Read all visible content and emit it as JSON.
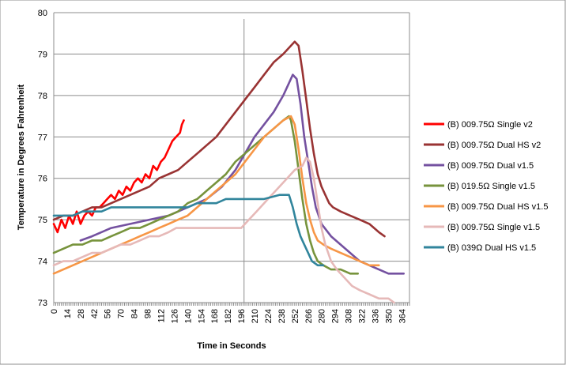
{
  "chart_data": {
    "type": "line",
    "title": "",
    "xlabel": "Time in Seconds",
    "ylabel": "Temperature in Degrees Fahrenheit",
    "xlim": [
      0,
      372
    ],
    "ylim": [
      73,
      80
    ],
    "yticks": [
      73,
      74,
      75,
      76,
      77,
      78,
      79,
      80
    ],
    "xticks": [
      0,
      14,
      28,
      42,
      56,
      70,
      84,
      98,
      112,
      126,
      140,
      154,
      168,
      182,
      196,
      210,
      224,
      238,
      252,
      266,
      280,
      294,
      308,
      322,
      336,
      350,
      364
    ],
    "vertical_marker_x": 199,
    "grid": "horizontal",
    "legend_position": "right",
    "series": [
      {
        "name": "(B) 009.75Ω Single v2",
        "color": "#ff0000",
        "points": [
          [
            0,
            74.9
          ],
          [
            4,
            74.7
          ],
          [
            8,
            75.0
          ],
          [
            12,
            74.8
          ],
          [
            16,
            75.1
          ],
          [
            20,
            74.9
          ],
          [
            24,
            75.2
          ],
          [
            28,
            74.9
          ],
          [
            32,
            75.1
          ],
          [
            36,
            75.2
          ],
          [
            40,
            75.1
          ],
          [
            44,
            75.3
          ],
          [
            48,
            75.3
          ],
          [
            52,
            75.4
          ],
          [
            56,
            75.5
          ],
          [
            60,
            75.6
          ],
          [
            64,
            75.5
          ],
          [
            68,
            75.7
          ],
          [
            72,
            75.6
          ],
          [
            76,
            75.8
          ],
          [
            80,
            75.7
          ],
          [
            84,
            75.9
          ],
          [
            88,
            76.0
          ],
          [
            92,
            75.9
          ],
          [
            96,
            76.1
          ],
          [
            100,
            76.0
          ],
          [
            104,
            76.3
          ],
          [
            108,
            76.2
          ],
          [
            112,
            76.4
          ],
          [
            116,
            76.5
          ],
          [
            120,
            76.7
          ],
          [
            124,
            76.9
          ],
          [
            128,
            77.0
          ],
          [
            132,
            77.1
          ],
          [
            134,
            77.3
          ],
          [
            136,
            77.4
          ]
        ]
      },
      {
        "name": "(B) 009.75Ω Dual HS v2",
        "color": "#993333",
        "points": [
          [
            0,
            75.0
          ],
          [
            10,
            75.1
          ],
          [
            20,
            75.1
          ],
          [
            30,
            75.2
          ],
          [
            40,
            75.3
          ],
          [
            50,
            75.3
          ],
          [
            60,
            75.4
          ],
          [
            70,
            75.5
          ],
          [
            80,
            75.6
          ],
          [
            90,
            75.7
          ],
          [
            100,
            75.8
          ],
          [
            110,
            76.0
          ],
          [
            120,
            76.1
          ],
          [
            130,
            76.2
          ],
          [
            140,
            76.4
          ],
          [
            150,
            76.6
          ],
          [
            160,
            76.8
          ],
          [
            170,
            77.0
          ],
          [
            180,
            77.3
          ],
          [
            190,
            77.6
          ],
          [
            200,
            77.9
          ],
          [
            210,
            78.2
          ],
          [
            220,
            78.5
          ],
          [
            230,
            78.8
          ],
          [
            240,
            79.0
          ],
          [
            248,
            79.2
          ],
          [
            252,
            79.3
          ],
          [
            256,
            79.2
          ],
          [
            260,
            78.6
          ],
          [
            264,
            77.9
          ],
          [
            268,
            77.2
          ],
          [
            272,
            76.6
          ],
          [
            276,
            76.1
          ],
          [
            280,
            75.8
          ],
          [
            284,
            75.6
          ],
          [
            288,
            75.4
          ],
          [
            292,
            75.3
          ],
          [
            300,
            75.2
          ],
          [
            310,
            75.1
          ],
          [
            320,
            75.0
          ],
          [
            330,
            74.9
          ],
          [
            340,
            74.7
          ],
          [
            346,
            74.6
          ]
        ]
      },
      {
        "name": "(B) 009.75Ω Dual v1.5",
        "color": "#7451a0",
        "points": [
          [
            28,
            74.5
          ],
          [
            40,
            74.6
          ],
          [
            60,
            74.8
          ],
          [
            80,
            74.9
          ],
          [
            100,
            75.0
          ],
          [
            120,
            75.1
          ],
          [
            140,
            75.3
          ],
          [
            160,
            75.5
          ],
          [
            176,
            75.8
          ],
          [
            190,
            76.2
          ],
          [
            200,
            76.6
          ],
          [
            210,
            77.0
          ],
          [
            220,
            77.3
          ],
          [
            230,
            77.6
          ],
          [
            240,
            78.0
          ],
          [
            246,
            78.3
          ],
          [
            250,
            78.5
          ],
          [
            254,
            78.4
          ],
          [
            258,
            77.8
          ],
          [
            262,
            77.0
          ],
          [
            266,
            76.4
          ],
          [
            270,
            75.8
          ],
          [
            274,
            75.3
          ],
          [
            280,
            74.9
          ],
          [
            290,
            74.6
          ],
          [
            300,
            74.4
          ],
          [
            310,
            74.2
          ],
          [
            320,
            74.0
          ],
          [
            330,
            73.9
          ],
          [
            340,
            73.8
          ],
          [
            350,
            73.7
          ],
          [
            360,
            73.7
          ],
          [
            366,
            73.7
          ]
        ]
      },
      {
        "name": "(B) 019.5Ω Single v1.5",
        "color": "#77933c",
        "points": [
          [
            0,
            74.2
          ],
          [
            10,
            74.3
          ],
          [
            20,
            74.4
          ],
          [
            30,
            74.4
          ],
          [
            40,
            74.5
          ],
          [
            50,
            74.5
          ],
          [
            60,
            74.6
          ],
          [
            70,
            74.7
          ],
          [
            80,
            74.8
          ],
          [
            90,
            74.8
          ],
          [
            100,
            74.9
          ],
          [
            110,
            75.0
          ],
          [
            120,
            75.1
          ],
          [
            130,
            75.2
          ],
          [
            140,
            75.4
          ],
          [
            150,
            75.5
          ],
          [
            160,
            75.7
          ],
          [
            170,
            75.9
          ],
          [
            180,
            76.1
          ],
          [
            190,
            76.4
          ],
          [
            200,
            76.6
          ],
          [
            210,
            76.8
          ],
          [
            220,
            77.0
          ],
          [
            230,
            77.2
          ],
          [
            240,
            77.4
          ],
          [
            246,
            77.5
          ],
          [
            248,
            77.4
          ],
          [
            252,
            76.9
          ],
          [
            256,
            76.2
          ],
          [
            260,
            75.5
          ],
          [
            264,
            74.9
          ],
          [
            268,
            74.5
          ],
          [
            272,
            74.2
          ],
          [
            276,
            74.0
          ],
          [
            282,
            73.9
          ],
          [
            290,
            73.8
          ],
          [
            300,
            73.8
          ],
          [
            310,
            73.7
          ],
          [
            318,
            73.7
          ]
        ]
      },
      {
        "name": "(B) 009.75Ω Dual HS v1.5",
        "color": "#f79646",
        "points": [
          [
            0,
            73.7
          ],
          [
            10,
            73.8
          ],
          [
            20,
            73.9
          ],
          [
            30,
            74.0
          ],
          [
            40,
            74.1
          ],
          [
            50,
            74.2
          ],
          [
            60,
            74.3
          ],
          [
            70,
            74.4
          ],
          [
            80,
            74.5
          ],
          [
            90,
            74.6
          ],
          [
            100,
            74.7
          ],
          [
            110,
            74.8
          ],
          [
            120,
            74.9
          ],
          [
            130,
            75.0
          ],
          [
            140,
            75.1
          ],
          [
            150,
            75.3
          ],
          [
            160,
            75.5
          ],
          [
            170,
            75.7
          ],
          [
            180,
            75.9
          ],
          [
            190,
            76.1
          ],
          [
            200,
            76.4
          ],
          [
            210,
            76.7
          ],
          [
            220,
            77.0
          ],
          [
            230,
            77.2
          ],
          [
            240,
            77.4
          ],
          [
            248,
            77.5
          ],
          [
            252,
            77.3
          ],
          [
            256,
            76.7
          ],
          [
            260,
            76.0
          ],
          [
            264,
            75.4
          ],
          [
            268,
            75.0
          ],
          [
            272,
            74.7
          ],
          [
            276,
            74.5
          ],
          [
            282,
            74.4
          ],
          [
            290,
            74.3
          ],
          [
            300,
            74.2
          ],
          [
            310,
            74.1
          ],
          [
            320,
            74.0
          ],
          [
            330,
            73.9
          ],
          [
            340,
            73.9
          ]
        ]
      },
      {
        "name": "(B) 009.75Ω Single v1.5",
        "color": "#e6b9b8",
        "points": [
          [
            0,
            73.9
          ],
          [
            10,
            74.0
          ],
          [
            20,
            74.0
          ],
          [
            30,
            74.1
          ],
          [
            40,
            74.2
          ],
          [
            50,
            74.2
          ],
          [
            60,
            74.3
          ],
          [
            70,
            74.4
          ],
          [
            80,
            74.4
          ],
          [
            90,
            74.5
          ],
          [
            100,
            74.6
          ],
          [
            110,
            74.6
          ],
          [
            120,
            74.7
          ],
          [
            128,
            74.8
          ],
          [
            196,
            74.8
          ],
          [
            204,
            75.0
          ],
          [
            212,
            75.2
          ],
          [
            220,
            75.4
          ],
          [
            228,
            75.6
          ],
          [
            236,
            75.8
          ],
          [
            244,
            76.0
          ],
          [
            252,
            76.2
          ],
          [
            260,
            76.3
          ],
          [
            264,
            76.5
          ],
          [
            268,
            76.4
          ],
          [
            272,
            76.0
          ],
          [
            276,
            75.4
          ],
          [
            280,
            74.8
          ],
          [
            284,
            74.4
          ],
          [
            290,
            74.0
          ],
          [
            296,
            73.8
          ],
          [
            304,
            73.6
          ],
          [
            312,
            73.4
          ],
          [
            320,
            73.3
          ],
          [
            330,
            73.2
          ],
          [
            340,
            73.1
          ],
          [
            350,
            73.1
          ],
          [
            356,
            73.0
          ]
        ]
      },
      {
        "name": "(B) 039Ω Dual HS v1.5",
        "color": "#31859c",
        "points": [
          [
            0,
            75.1
          ],
          [
            20,
            75.1
          ],
          [
            30,
            75.2
          ],
          [
            50,
            75.2
          ],
          [
            60,
            75.3
          ],
          [
            100,
            75.3
          ],
          [
            140,
            75.3
          ],
          [
            150,
            75.4
          ],
          [
            170,
            75.4
          ],
          [
            180,
            75.5
          ],
          [
            200,
            75.5
          ],
          [
            220,
            75.5
          ],
          [
            236,
            75.6
          ],
          [
            246,
            75.6
          ],
          [
            250,
            75.3
          ],
          [
            254,
            74.9
          ],
          [
            258,
            74.6
          ],
          [
            262,
            74.4
          ],
          [
            266,
            74.2
          ],
          [
            270,
            74.0
          ],
          [
            276,
            73.9
          ],
          [
            282,
            73.9
          ]
        ]
      }
    ]
  }
}
